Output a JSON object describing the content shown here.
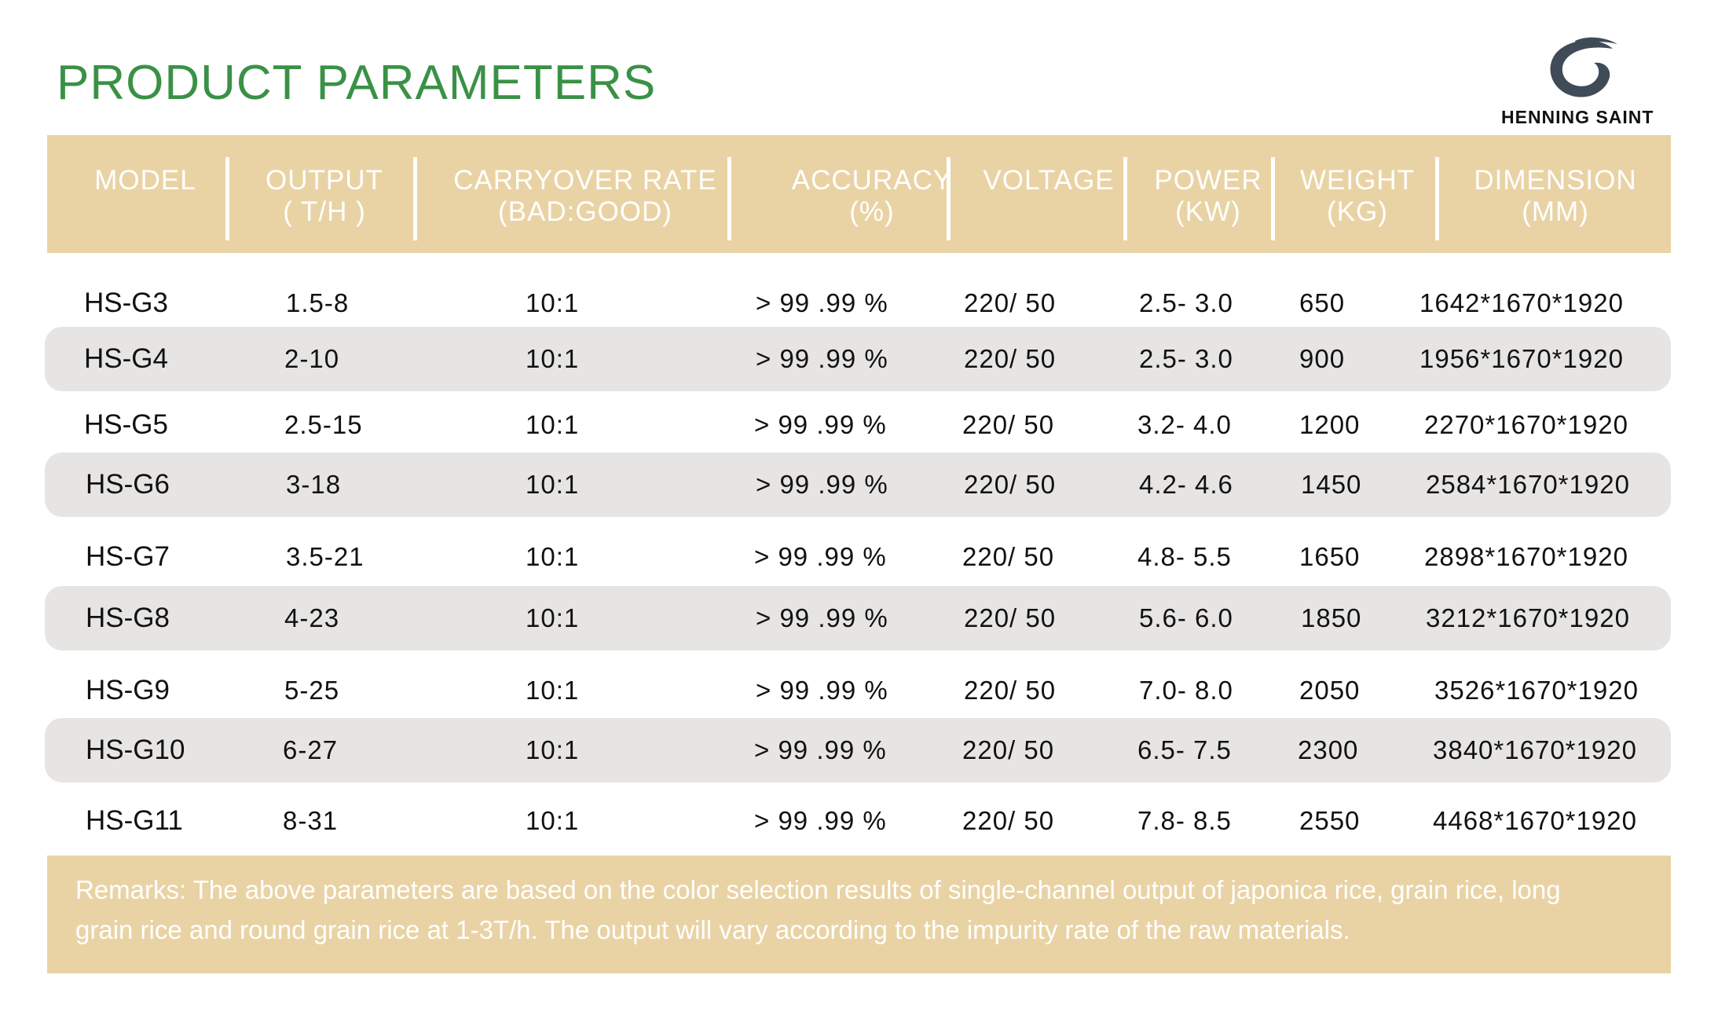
{
  "title": "PRODUCT PARAMETERS",
  "brand": {
    "name": "HENNING SAINT",
    "logo_icon": "swirl-logo-icon",
    "logo_color": "#3f4b57"
  },
  "colors": {
    "title": "#3a9146",
    "band": "#e9d3a5",
    "row_shade": "#e6e5e4"
  },
  "table": {
    "headers": [
      {
        "line1": "MODEL",
        "line2": ""
      },
      {
        "line1": "OUTPUT",
        "line2": "( T/H )"
      },
      {
        "line1": "CARRYOVER RATE",
        "line2": "(BAD:GOOD)"
      },
      {
        "line1": "ACCURACY",
        "line2": "(%)"
      },
      {
        "line1": "VOLTAGE",
        "line2": ""
      },
      {
        "line1": "POWER",
        "line2": "(KW)"
      },
      {
        "line1": "WEIGHT",
        "line2": "(KG)"
      },
      {
        "line1": "DIMENSION",
        "line2": "(MM)"
      }
    ],
    "rows": [
      [
        "HS-G3",
        "1.5-8",
        "10:1",
        "> 99 .99 %",
        "220/ 50",
        "2.5- 3.0",
        "650",
        "1642*1670*1920"
      ],
      [
        "HS-G4",
        "2-10",
        "10:1",
        "> 99 .99 %",
        "220/ 50",
        "2.5- 3.0",
        "900",
        "1956*1670*1920"
      ],
      [
        "HS-G5",
        "2.5-15",
        "10:1",
        "> 99 .99 %",
        "220/ 50",
        "3.2- 4.0",
        "1200",
        "2270*1670*1920"
      ],
      [
        "HS-G6",
        "3-18",
        "10:1",
        "> 99 .99 %",
        "220/ 50",
        "4.2- 4.6",
        "1450",
        "2584*1670*1920"
      ],
      [
        "HS-G7",
        "3.5-21",
        "10:1",
        "> 99 .99 %",
        "220/ 50",
        "4.8- 5.5",
        "1650",
        "2898*1670*1920"
      ],
      [
        "HS-G8",
        "4-23",
        "10:1",
        "> 99 .99 %",
        "220/ 50",
        "5.6- 6.0",
        "1850",
        "3212*1670*1920"
      ],
      [
        "HS-G9",
        "5-25",
        "10:1",
        "> 99 .99 %",
        "220/ 50",
        "7.0- 8.0",
        "2050",
        "3526*1670*1920"
      ],
      [
        "HS-G10",
        "6-27",
        "10:1",
        "> 99 .99 %",
        "220/ 50",
        "6.5- 7.5",
        "2300",
        "3840*1670*1920"
      ],
      [
        "HS-G11",
        "8-31",
        "10:1",
        "> 99 .99 %",
        "220/ 50",
        "7.8- 8.5",
        "2550",
        "4468*1670*1920"
      ]
    ]
  },
  "remarks": {
    "line1": "Remarks: The above parameters are based on the color selection results of single-channel output of japonica rice, grain rice, long",
    "line2": "grain rice and round grain rice at 1-3T/h. The output will vary according to the impurity rate of the raw materials."
  }
}
